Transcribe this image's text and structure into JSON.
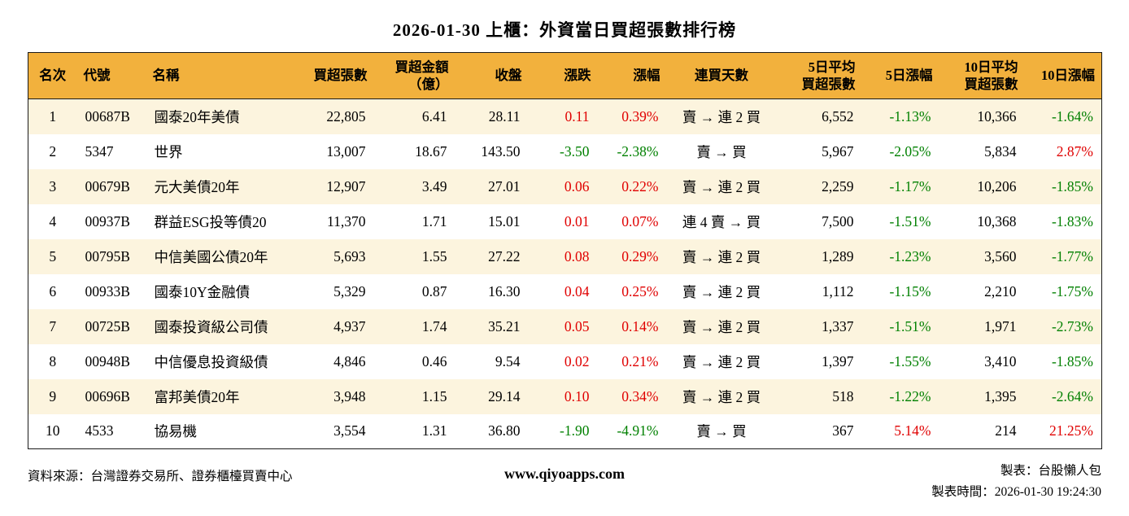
{
  "title": "2026-01-30 上櫃：外資當日買超張數排行榜",
  "colors": {
    "up": "#e00000",
    "down": "#008000",
    "header_bg": "#f2b13d",
    "row_alt_bg": "#fcf4de",
    "border": "#1a1a1a"
  },
  "chart_data": {
    "type": "table",
    "title": "2026-01-30 上櫃：外資當日買超張數排行榜",
    "columns": [
      {
        "key": "rank",
        "lines": [
          "名次"
        ],
        "align": "center",
        "signed": false
      },
      {
        "key": "code",
        "lines": [
          "代號"
        ],
        "align": "left",
        "signed": false
      },
      {
        "key": "name",
        "lines": [
          "名稱"
        ],
        "align": "left",
        "signed": false
      },
      {
        "key": "volume",
        "lines": [
          "買超張數"
        ],
        "align": "right",
        "signed": false
      },
      {
        "key": "amount",
        "lines": [
          "買超金額",
          "（億）"
        ],
        "align": "right",
        "signed": false
      },
      {
        "key": "close",
        "lines": [
          "收盤"
        ],
        "align": "right",
        "signed": false
      },
      {
        "key": "change",
        "lines": [
          "漲跌"
        ],
        "align": "right",
        "signed": true
      },
      {
        "key": "change_pct",
        "lines": [
          "漲幅"
        ],
        "align": "right",
        "signed": true
      },
      {
        "key": "streak",
        "lines": [
          "連買天數"
        ],
        "align": "center",
        "signed": false
      },
      {
        "key": "avg5_volume",
        "lines": [
          "5日平均",
          "買超張數"
        ],
        "align": "right",
        "signed": false
      },
      {
        "key": "pct5",
        "lines": [
          "5日漲幅"
        ],
        "align": "right",
        "signed": true
      },
      {
        "key": "avg10_volume",
        "lines": [
          "10日平均",
          "買超張數"
        ],
        "align": "right",
        "signed": false
      },
      {
        "key": "pct10",
        "lines": [
          "10日漲幅"
        ],
        "align": "right",
        "signed": true
      }
    ],
    "rows": [
      [
        "1",
        "00687B",
        "國泰20年美債",
        "22,805",
        "6.41",
        "28.11",
        "0.11",
        "0.39%",
        "賣 → 連 2 買",
        "6,552",
        "-1.13%",
        "10,366",
        "-1.64%"
      ],
      [
        "2",
        "5347",
        "世界",
        "13,007",
        "18.67",
        "143.50",
        "-3.50",
        "-2.38%",
        "賣 → 買",
        "5,967",
        "-2.05%",
        "5,834",
        "2.87%"
      ],
      [
        "3",
        "00679B",
        "元大美債20年",
        "12,907",
        "3.49",
        "27.01",
        "0.06",
        "0.22%",
        "賣 → 連 2 買",
        "2,259",
        "-1.17%",
        "10,206",
        "-1.85%"
      ],
      [
        "4",
        "00937B",
        "群益ESG投等債20",
        "11,370",
        "1.71",
        "15.01",
        "0.01",
        "0.07%",
        "連 4 賣 → 買",
        "7,500",
        "-1.51%",
        "10,368",
        "-1.83%"
      ],
      [
        "5",
        "00795B",
        "中信美國公債20年",
        "5,693",
        "1.55",
        "27.22",
        "0.08",
        "0.29%",
        "賣 → 連 2 買",
        "1,289",
        "-1.23%",
        "3,560",
        "-1.77%"
      ],
      [
        "6",
        "00933B",
        "國泰10Y金融債",
        "5,329",
        "0.87",
        "16.30",
        "0.04",
        "0.25%",
        "賣 → 連 2 買",
        "1,112",
        "-1.15%",
        "2,210",
        "-1.75%"
      ],
      [
        "7",
        "00725B",
        "國泰投資級公司債",
        "4,937",
        "1.74",
        "35.21",
        "0.05",
        "0.14%",
        "賣 → 連 2 買",
        "1,337",
        "-1.51%",
        "1,971",
        "-2.73%"
      ],
      [
        "8",
        "00948B",
        "中信優息投資級債",
        "4,846",
        "0.46",
        "9.54",
        "0.02",
        "0.21%",
        "賣 → 連 2 買",
        "1,397",
        "-1.55%",
        "3,410",
        "-1.85%"
      ],
      [
        "9",
        "00696B",
        "富邦美債20年",
        "3,948",
        "1.15",
        "29.14",
        "0.10",
        "0.34%",
        "賣 → 連 2 買",
        "518",
        "-1.22%",
        "1,395",
        "-2.64%"
      ],
      [
        "10",
        "4533",
        "協易機",
        "3,554",
        "1.31",
        "36.80",
        "-1.90",
        "-4.91%",
        "賣 → 買",
        "367",
        "5.14%",
        "214",
        "21.25%"
      ]
    ]
  },
  "footer": {
    "source": "資料來源：台灣證券交易所、證券櫃檯買賣中心",
    "website": "www.qiyoapps.com",
    "maker": "製表：台股懶人包",
    "time": "製表時間：2026-01-30 19:24:30"
  }
}
